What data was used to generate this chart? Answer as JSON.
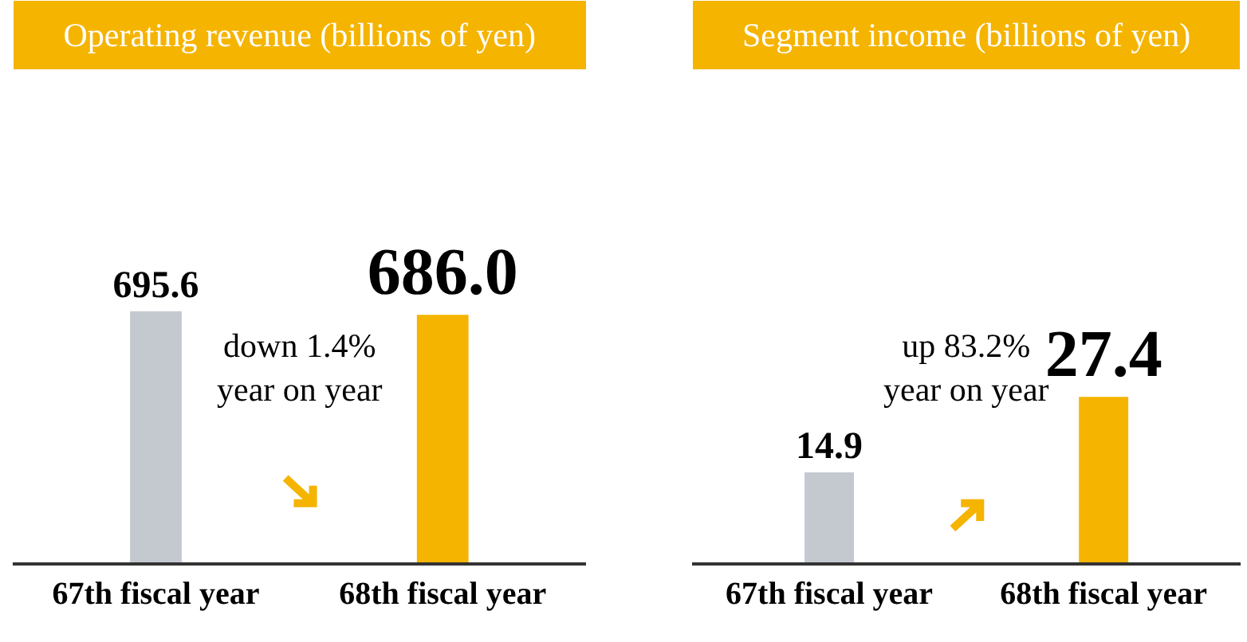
{
  "chart_data": [
    {
      "type": "bar",
      "title": "Operating revenue (billions of yen)",
      "categories": [
        "67th fiscal year",
        "68th fiscal year"
      ],
      "values": [
        695.6,
        686.0
      ],
      "value_labels": [
        "695.6",
        "686.0"
      ],
      "colors": [
        "#c3c9cf",
        "#f5b400"
      ],
      "annotations": [
        "down 1.4%\nyear on year"
      ]
    },
    {
      "type": "bar",
      "title": "Segment income (billions of yen)",
      "categories": [
        "67th fiscal year",
        "68th fiscal year"
      ],
      "values": [
        14.9,
        27.4
      ],
      "value_labels": [
        "14.9",
        "27.4"
      ],
      "colors": [
        "#c3c9cf",
        "#f5b400"
      ],
      "annotations": [
        "up 83.2%\nyear on year"
      ]
    }
  ]
}
